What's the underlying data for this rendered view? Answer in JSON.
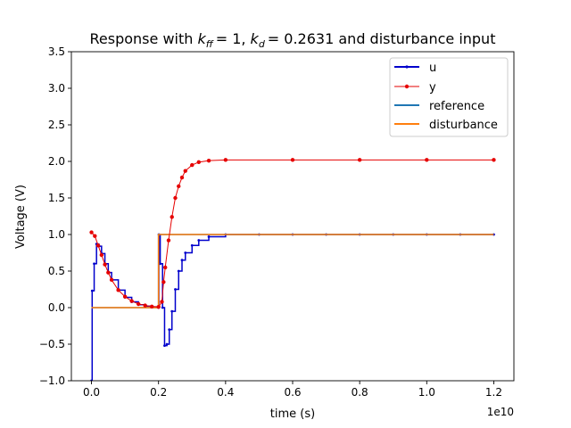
{
  "chart_data": {
    "type": "line",
    "title": "Response with k_ff = 1, k_d = 0.2631 and disturbance input",
    "title_parts": {
      "prefix": "Response with ",
      "k": "k",
      "ff": "ff",
      "kff_value": "= 1, ",
      "d": "d",
      "kd_value": "= 0.2631",
      "suffix": " and disturbance input"
    },
    "xlabel": "time (s)",
    "ylabel": "Voltage (V)",
    "x_offset_label": "1e10",
    "xlim": [
      -0.06,
      1.26
    ],
    "ylim": [
      -1.0,
      3.5
    ],
    "x_ticks": [
      0.0,
      0.2,
      0.4,
      0.6,
      0.8,
      1.0,
      1.2
    ],
    "x_tick_labels": [
      "0.0",
      "0.2",
      "0.4",
      "0.6",
      "0.8",
      "1.0",
      "1.2"
    ],
    "y_ticks": [
      -1.0,
      -0.5,
      0.0,
      0.5,
      1.0,
      1.5,
      2.0,
      2.5,
      3.0,
      3.5
    ],
    "y_tick_labels": [
      "−1.0",
      "−0.5",
      "0.0",
      "0.5",
      "1.0",
      "1.5",
      "2.0",
      "2.5",
      "3.0",
      "3.5"
    ],
    "grid": false,
    "legend_position": "top-right",
    "series": [
      {
        "name": "u",
        "color": "#0000cc",
        "style": "step-line-with-small-markers",
        "points": [
          [
            0.0,
            -1.0
          ],
          [
            0.002,
            0.23
          ],
          [
            0.008,
            0.6
          ],
          [
            0.015,
            0.87
          ],
          [
            0.022,
            0.84
          ],
          [
            0.03,
            0.74
          ],
          [
            0.04,
            0.6
          ],
          [
            0.05,
            0.48
          ],
          [
            0.06,
            0.38
          ],
          [
            0.08,
            0.24
          ],
          [
            0.1,
            0.14
          ],
          [
            0.12,
            0.08
          ],
          [
            0.14,
            0.04
          ],
          [
            0.16,
            0.02
          ],
          [
            0.18,
            0.01
          ],
          [
            0.2,
            0.0
          ],
          [
            0.201,
            1.0
          ],
          [
            0.205,
            0.6
          ],
          [
            0.212,
            0.0
          ],
          [
            0.218,
            -0.52
          ],
          [
            0.225,
            -0.5
          ],
          [
            0.232,
            -0.3
          ],
          [
            0.24,
            -0.05
          ],
          [
            0.25,
            0.25
          ],
          [
            0.26,
            0.5
          ],
          [
            0.27,
            0.65
          ],
          [
            0.28,
            0.75
          ],
          [
            0.3,
            0.85
          ],
          [
            0.32,
            0.92
          ],
          [
            0.35,
            0.97
          ],
          [
            0.4,
            1.0
          ],
          [
            0.5,
            1.0
          ],
          [
            0.6,
            1.0
          ],
          [
            0.7,
            1.0
          ],
          [
            0.8,
            1.0
          ],
          [
            0.9,
            1.0
          ],
          [
            1.0,
            1.0
          ],
          [
            1.1,
            1.0
          ],
          [
            1.2,
            1.0
          ]
        ]
      },
      {
        "name": "y",
        "color": "#e60000",
        "style": "line-with-dots",
        "points": [
          [
            0.0,
            1.03
          ],
          [
            0.01,
            0.98
          ],
          [
            0.02,
            0.85
          ],
          [
            0.03,
            0.72
          ],
          [
            0.04,
            0.59
          ],
          [
            0.05,
            0.48
          ],
          [
            0.06,
            0.38
          ],
          [
            0.08,
            0.24
          ],
          [
            0.1,
            0.15
          ],
          [
            0.12,
            0.09
          ],
          [
            0.14,
            0.05
          ],
          [
            0.16,
            0.03
          ],
          [
            0.18,
            0.015
          ],
          [
            0.2,
            0.01
          ],
          [
            0.21,
            0.08
          ],
          [
            0.215,
            0.35
          ],
          [
            0.22,
            0.55
          ],
          [
            0.23,
            0.92
          ],
          [
            0.24,
            1.24
          ],
          [
            0.25,
            1.5
          ],
          [
            0.26,
            1.66
          ],
          [
            0.27,
            1.78
          ],
          [
            0.28,
            1.87
          ],
          [
            0.3,
            1.95
          ],
          [
            0.32,
            1.99
          ],
          [
            0.35,
            2.01
          ],
          [
            0.4,
            2.02
          ],
          [
            0.6,
            2.02
          ],
          [
            0.8,
            2.02
          ],
          [
            1.0,
            2.02
          ],
          [
            1.2,
            2.02
          ]
        ]
      },
      {
        "name": "reference",
        "color": "#1f77b4",
        "style": "step",
        "points": [
          [
            0.0,
            0.0
          ],
          [
            0.2,
            0.0
          ],
          [
            0.2,
            1.0
          ],
          [
            1.2,
            1.0
          ]
        ]
      },
      {
        "name": "disturbance",
        "color": "#ff7f0e",
        "style": "step",
        "points": [
          [
            0.0,
            0.0
          ],
          [
            0.2,
            0.0
          ],
          [
            0.2,
            1.0
          ],
          [
            1.2,
            1.0
          ]
        ]
      }
    ]
  }
}
